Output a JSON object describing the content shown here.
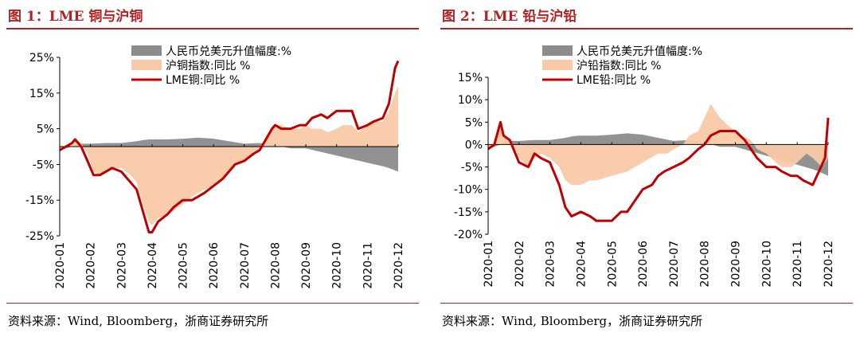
{
  "figures": [
    {
      "title": "图 1：LME 铜与沪铜",
      "source": "资料来源：Wind, Bloomberg，浙商证券研究所",
      "chart_data": {
        "type": "area",
        "ylim": [
          -25,
          25
        ],
        "yticks": [
          25,
          15,
          5,
          -5,
          -15,
          -25
        ],
        "ytick_labels": [
          "25%",
          "15%",
          "5%",
          "-5%",
          "-15%",
          "-25%"
        ],
        "x_range": [
          0,
          11
        ],
        "categories": [
          "2020-01",
          "2020-02",
          "2020-03",
          "2020-04",
          "2020-05",
          "2020-06",
          "2020-07",
          "2020-08",
          "2020-09",
          "2020-10",
          "2020-11",
          "2020-12"
        ],
        "legend_position": "top-right",
        "series": [
          {
            "name": "人民币兑美元升值幅度:%",
            "kind": "area",
            "color": "#8c8c8c",
            "x": [
              0,
              0.4,
              0.5,
              0.7,
              1,
              1.5,
              2,
              2.5,
              2.7,
              2.9,
              3,
              3.5,
              4,
              4.5,
              5,
              5.5,
              6,
              6.5,
              7,
              7.5,
              8,
              8.5,
              9,
              9.5,
              10,
              10.5,
              10.7,
              11
            ],
            "y": [
              -1,
              0,
              0.5,
              0.8,
              0.8,
              1,
              1,
              1.5,
              1.8,
              2,
              2,
              2,
              2.2,
              2.5,
              2.2,
              1.5,
              0.8,
              1,
              0.5,
              -0.5,
              -0.5,
              -1.5,
              -2.5,
              -3.5,
              -4.5,
              -5.5,
              -6,
              -7
            ]
          },
          {
            "name": "沪铜指数:同比 %",
            "kind": "area",
            "color": "#f9c9a8",
            "x": [
              0,
              0.2,
              0.4,
              0.5,
              0.7,
              0.9,
              1.1,
              1.3,
              1.5,
              1.7,
              2,
              2.3,
              2.5,
              2.7,
              2.9,
              3,
              3.2,
              3.5,
              3.7,
              4,
              4.3,
              4.5,
              4.7,
              5,
              5.3,
              5.5,
              5.7,
              6,
              6.3,
              6.5,
              6.7,
              6.9,
              7,
              7.2,
              7.5,
              7.8,
              8,
              8.2,
              8.5,
              8.7,
              9,
              9.2,
              9.5,
              9.7,
              10,
              10.2,
              10.5,
              10.7,
              10.9,
              11
            ],
            "y": [
              -1,
              0,
              1,
              2,
              1,
              -2,
              -7,
              -8,
              -7,
              -6,
              -6,
              -8,
              -10,
              -16,
              -21,
              -22,
              -20,
              -19,
              -18,
              -16,
              -14,
              -13,
              -12,
              -11,
              -9,
              -7,
              -5,
              -4,
              -2,
              -1,
              2,
              5,
              6,
              6,
              5,
              5,
              6,
              5,
              5,
              4,
              5,
              6,
              6,
              4,
              6,
              7,
              7,
              10,
              15,
              17
            ]
          },
          {
            "name": "LME铜:同比 %",
            "kind": "line",
            "color": "#c00000",
            "x": [
              0,
              0.2,
              0.4,
              0.5,
              0.7,
              0.9,
              1.1,
              1.3,
              1.5,
              1.7,
              2,
              2.3,
              2.5,
              2.7,
              2.9,
              3,
              3.2,
              3.5,
              3.7,
              4,
              4.3,
              4.5,
              4.7,
              5,
              5.3,
              5.5,
              5.7,
              6,
              6.3,
              6.5,
              6.7,
              6.9,
              7,
              7.2,
              7.5,
              7.8,
              8,
              8.2,
              8.5,
              8.7,
              9,
              9.2,
              9.5,
              9.7,
              10,
              10.2,
              10.5,
              10.7,
              10.9,
              11
            ],
            "y": [
              -1,
              0,
              1,
              2,
              0,
              -4,
              -8,
              -8,
              -7,
              -6,
              -7,
              -10,
              -12,
              -18,
              -24,
              -24,
              -21,
              -19,
              -17,
              -15,
              -15,
              -14,
              -13,
              -11,
              -9,
              -7,
              -5,
              -4,
              -2,
              -1,
              2,
              5,
              6,
              5,
              5,
              6,
              6,
              8,
              9,
              8,
              10,
              10,
              10,
              5,
              6,
              7,
              8,
              12,
              22,
              24
            ]
          }
        ]
      }
    },
    {
      "title": "图 2：LME 铅与沪铅",
      "source": "资料来源：Wind, Bloomberg，浙商证券研究所",
      "chart_data": {
        "type": "area",
        "ylim": [
          -20,
          15
        ],
        "yticks": [
          15,
          10,
          5,
          0,
          -5,
          -10,
          -15,
          -20
        ],
        "ytick_labels": [
          "15%",
          "10%",
          "5%",
          "0%",
          "-5%",
          "-10%",
          "-15%",
          "-20%"
        ],
        "x_range": [
          0,
          11
        ],
        "categories": [
          "2020-01",
          "2020-02",
          "2020-03",
          "2020-04",
          "2020-05",
          "2020-06",
          "2020-07",
          "2020-08",
          "2020-09",
          "2020-10",
          "2020-11",
          "2020-12"
        ],
        "legend_position": "top-right",
        "series": [
          {
            "name": "人民币兑美元升值幅度:%",
            "kind": "area",
            "color": "#8c8c8c",
            "x": [
              0,
              0.4,
              0.5,
              0.7,
              1,
              1.5,
              2,
              2.5,
              2.7,
              2.9,
              3,
              3.5,
              4,
              4.5,
              5,
              5.5,
              6,
              6.5,
              7,
              7.5,
              8,
              8.5,
              9,
              9.5,
              10,
              10.5,
              10.7,
              11
            ],
            "y": [
              -1,
              0,
              0.5,
              0.8,
              0.8,
              1,
              1,
              1.5,
              1.8,
              2,
              2,
              2,
              2.2,
              2.5,
              2.2,
              1.5,
              0.8,
              1,
              0.5,
              -0.5,
              -0.5,
              -1.5,
              -2.5,
              -3.5,
              -4.5,
              -5.5,
              -6,
              -7
            ]
          },
          {
            "name": "沪铅指数:同比 %",
            "kind": "area",
            "color": "#f9c9a8",
            "x": [
              0,
              0.2,
              0.4,
              0.5,
              0.7,
              1,
              1.3,
              1.5,
              1.7,
              2,
              2.3,
              2.5,
              2.7,
              3,
              3.3,
              3.5,
              4,
              4.5,
              5,
              5.5,
              5.8,
              6,
              6.3,
              6.5,
              6.8,
              7,
              7.2,
              7.5,
              7.8,
              8,
              8.2,
              8.5,
              8.7,
              9,
              9.3,
              9.5,
              9.8,
              10,
              10.3,
              10.5,
              10.8,
              11
            ],
            "y": [
              -1,
              0,
              4,
              2,
              1,
              -3,
              -5,
              -3,
              -2,
              -3,
              -5,
              -8,
              -9,
              -9,
              -8,
              -8,
              -7,
              -6,
              -4,
              -2,
              -2,
              -1,
              0,
              2,
              3,
              6,
              9,
              6,
              4,
              3,
              2,
              1,
              -1,
              -2,
              -4,
              -5,
              -5,
              -4,
              -2,
              -3,
              -5,
              -3
            ]
          },
          {
            "name": "LME铅:同比 %",
            "kind": "line",
            "color": "#c00000",
            "x": [
              0,
              0.2,
              0.4,
              0.5,
              0.7,
              1,
              1.3,
              1.5,
              1.7,
              2,
              2.3,
              2.5,
              2.7,
              3,
              3.3,
              3.5,
              4,
              4.3,
              4.5,
              4.8,
              5,
              5.3,
              5.5,
              5.7,
              6,
              6.3,
              6.5,
              6.8,
              7,
              7.2,
              7.5,
              7.8,
              8,
              8.3,
              8.5,
              8.7,
              9,
              9.3,
              9.5,
              9.8,
              10,
              10.2,
              10.5,
              10.7,
              10.9,
              11
            ],
            "y": [
              -1,
              0,
              5,
              2,
              1,
              -4,
              -5,
              -2,
              -3,
              -4,
              -9,
              -14,
              -16,
              -15,
              -16,
              -17,
              -17,
              -15,
              -15,
              -12,
              -10,
              -9,
              -7,
              -6,
              -5,
              -4,
              -3,
              -1,
              0,
              2,
              3,
              3,
              3,
              1,
              -1,
              -3,
              -5,
              -5,
              -6,
              -7,
              -7,
              -8,
              -9,
              -6,
              -3,
              6
            ]
          }
        ]
      }
    }
  ]
}
